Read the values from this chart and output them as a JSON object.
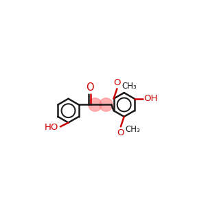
{
  "background_color": "#ffffff",
  "bond_color": "#1a1a1a",
  "oxygen_color": "#cc0000",
  "highlight_color": "#ff8888",
  "bond_lw": 1.8,
  "font_size": 9.5,
  "methyl_font_size": 8.5,
  "figsize": [
    3.0,
    3.0
  ],
  "dpi": 100,
  "xlim": [
    -1.0,
    11.0
  ],
  "ylim": [
    2.5,
    8.5
  ]
}
